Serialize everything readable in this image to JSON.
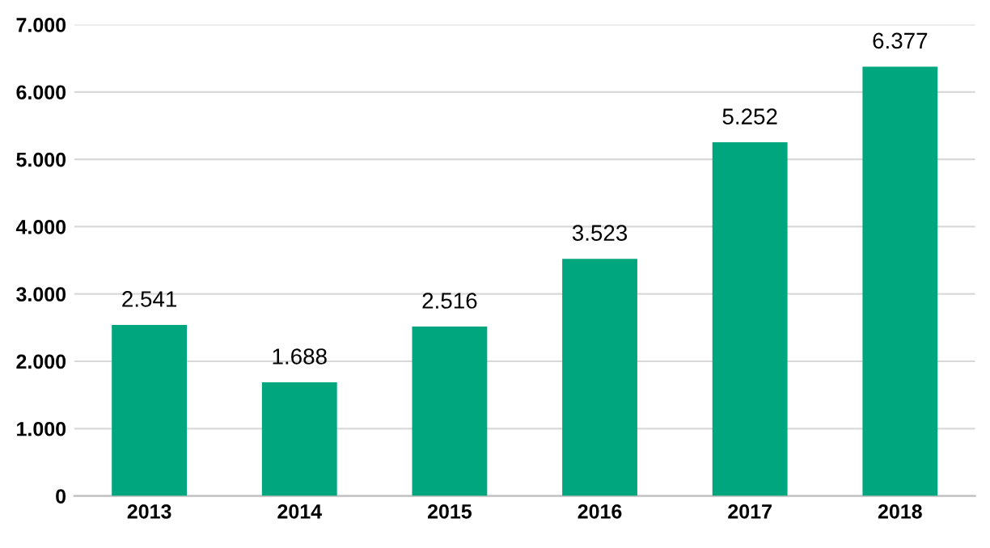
{
  "chart_data": {
    "type": "bar",
    "categories": [
      "2013",
      "2014",
      "2015",
      "2016",
      "2017",
      "2018"
    ],
    "values": [
      2541,
      1688,
      2516,
      3523,
      5252,
      6377
    ],
    "value_labels": [
      "2.541",
      "1.688",
      "2.516",
      "3.523",
      "5.252",
      "6.377"
    ],
    "color": "#00a67e",
    "ylim": [
      0,
      7000
    ],
    "yticks": [
      {
        "value": 0,
        "label": "0"
      },
      {
        "value": 1000,
        "label": "1.000"
      },
      {
        "value": 2000,
        "label": "2.000"
      },
      {
        "value": 3000,
        "label": "3.000"
      },
      {
        "value": 4000,
        "label": "4.000"
      },
      {
        "value": 5000,
        "label": "5.000"
      },
      {
        "value": 6000,
        "label": "6.000"
      },
      {
        "value": 7000,
        "label": "7.000"
      }
    ],
    "grid": "y"
  }
}
